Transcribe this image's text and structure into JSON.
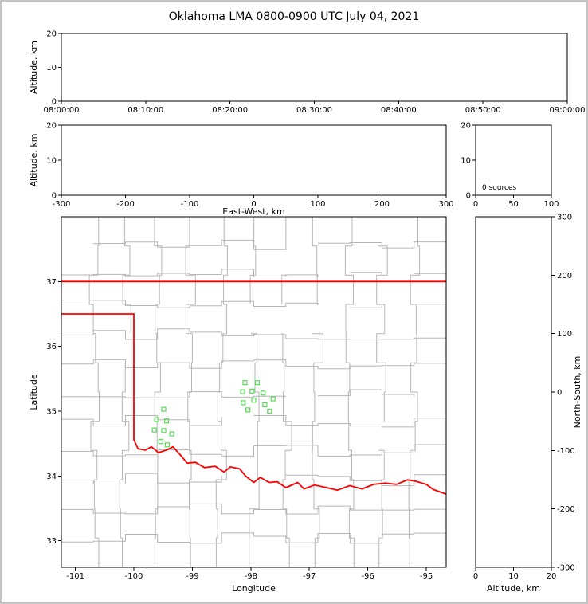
{
  "frame": {
    "bg": "#ffffff",
    "border_color": "#c4c4c4"
  },
  "title": "Oklahoma LMA 0800-0900 UTC July 04, 2021",
  "colors": {
    "axis": "#000000",
    "text": "#000000",
    "county_lines": "#b6b6b6",
    "state_border": "#ff0000",
    "station_marker": "#55dd55"
  },
  "chart_data": [
    {
      "id": "time_height_panel",
      "type": "scatter",
      "xlabel": "",
      "ylabel": "Altitude, km",
      "xticklabels": [
        "08:00:00",
        "08:10:00",
        "08:20:00",
        "08:30:00",
        "08:40:00",
        "08:50:00",
        "09:00:00"
      ],
      "yticklabels": [
        "0",
        "10",
        "20"
      ],
      "yticks": [
        0,
        10,
        20
      ],
      "ylim": [
        0,
        20
      ],
      "points": []
    },
    {
      "id": "ew_height_panel",
      "type": "scatter",
      "xlabel": "East-West, km",
      "ylabel": "Altitude, km",
      "xticklabels": [
        "-300",
        "-200",
        "-100",
        "0",
        "100",
        "200",
        "300"
      ],
      "xticks": [
        -300,
        -200,
        -100,
        0,
        100,
        200,
        300
      ],
      "xlim": [
        -300,
        300
      ],
      "yticklabels": [
        "0",
        "10",
        "20"
      ],
      "yticks": [
        0,
        10,
        20
      ],
      "ylim": [
        0,
        20
      ],
      "points": []
    },
    {
      "id": "altitude_histogram_panel",
      "type": "histogram",
      "annotation": "0 sources",
      "xticklabels": [
        "0",
        "50",
        "100"
      ],
      "xticks": [
        0,
        50,
        100
      ],
      "xlim": [
        0,
        100
      ],
      "yticklabels": [
        "0",
        "10",
        "20"
      ],
      "yticks": [
        0,
        10,
        20
      ],
      "ylim": [
        0,
        20
      ],
      "points": []
    },
    {
      "id": "plan_view_map_panel",
      "type": "scatter",
      "xlabel": "Longitude",
      "ylabel": "Latitude",
      "xticklabels": [
        "-101",
        "-100",
        "-99",
        "-98",
        "-97",
        "-96",
        "-95"
      ],
      "xticks": [
        -101,
        -100,
        -99,
        -98,
        -97,
        -96,
        -95
      ],
      "xlim": [
        -101.24,
        -94.66
      ],
      "yticklabels": [
        "33",
        "34",
        "35",
        "36",
        "37"
      ],
      "yticks": [
        33,
        34,
        35,
        36,
        37
      ],
      "ylim": [
        32.59,
        38.0
      ],
      "points": [],
      "stations": [
        [
          -98.1,
          35.44
        ],
        [
          -97.89,
          35.44
        ],
        [
          -98.14,
          35.3
        ],
        [
          -97.98,
          35.31
        ],
        [
          -97.79,
          35.28
        ],
        [
          -98.13,
          35.13
        ],
        [
          -97.95,
          35.17
        ],
        [
          -98.05,
          35.02
        ],
        [
          -97.76,
          35.1
        ],
        [
          -97.62,
          35.19
        ],
        [
          -97.68,
          35.0
        ],
        [
          -99.49,
          35.03
        ],
        [
          -99.61,
          34.87
        ],
        [
          -99.44,
          34.85
        ],
        [
          -99.65,
          34.71
        ],
        [
          -99.49,
          34.7
        ],
        [
          -99.35,
          34.65
        ],
        [
          -99.54,
          34.53
        ],
        [
          -99.43,
          34.48
        ]
      ],
      "state_border": {
        "color": "#ff0000",
        "polylines": [
          [
            [
              -101.24,
              37.0
            ],
            [
              -94.66,
              37.0
            ]
          ],
          [
            [
              -101.24,
              36.5
            ],
            [
              -100.0,
              36.5
            ]
          ],
          [
            [
              -100.0,
              36.5
            ],
            [
              -100.0,
              34.56
            ]
          ],
          [
            [
              -100.0,
              34.56
            ],
            [
              -99.93,
              34.42
            ],
            [
              -99.8,
              34.4
            ],
            [
              -99.7,
              34.45
            ],
            [
              -99.58,
              34.36
            ],
            [
              -99.44,
              34.4
            ],
            [
              -99.33,
              34.45
            ],
            [
              -99.21,
              34.33
            ],
            [
              -99.09,
              34.2
            ],
            [
              -98.95,
              34.21
            ],
            [
              -98.79,
              34.13
            ],
            [
              -98.61,
              34.15
            ],
            [
              -98.46,
              34.06
            ],
            [
              -98.35,
              34.14
            ],
            [
              -98.19,
              34.11
            ],
            [
              -98.09,
              34.0
            ],
            [
              -97.95,
              33.9
            ],
            [
              -97.84,
              33.98
            ],
            [
              -97.69,
              33.9
            ],
            [
              -97.55,
              33.91
            ],
            [
              -97.4,
              33.82
            ],
            [
              -97.2,
              33.9
            ],
            [
              -97.09,
              33.8
            ],
            [
              -96.91,
              33.86
            ],
            [
              -96.7,
              33.82
            ],
            [
              -96.52,
              33.78
            ],
            [
              -96.31,
              33.85
            ],
            [
              -96.1,
              33.8
            ],
            [
              -95.9,
              33.87
            ],
            [
              -95.7,
              33.89
            ],
            [
              -95.51,
              33.87
            ],
            [
              -95.32,
              33.94
            ],
            [
              -95.19,
              33.92
            ],
            [
              -95.0,
              33.87
            ],
            [
              -94.88,
              33.79
            ],
            [
              -94.66,
              33.72
            ]
          ]
        ]
      },
      "county_grid": {
        "color": "#b6b6b6",
        "cell_lon": 0.53,
        "cell_lat": 0.45,
        "jitter": 0.2,
        "seed": 20210704
      }
    },
    {
      "id": "ns_height_panel",
      "type": "scatter",
      "xlabel": "Altitude, km",
      "ylabel": "North-South, km",
      "xticklabels": [
        "0",
        "10",
        "20"
      ],
      "xticks": [
        0,
        10,
        20
      ],
      "xlim": [
        0,
        20
      ],
      "yticklabels": [
        "-300",
        "-200",
        "-100",
        "0",
        "100",
        "200",
        "300"
      ],
      "yticks": [
        -300,
        -200,
        -100,
        0,
        100,
        200,
        300
      ],
      "ylim": [
        -300,
        300
      ],
      "points": []
    }
  ]
}
